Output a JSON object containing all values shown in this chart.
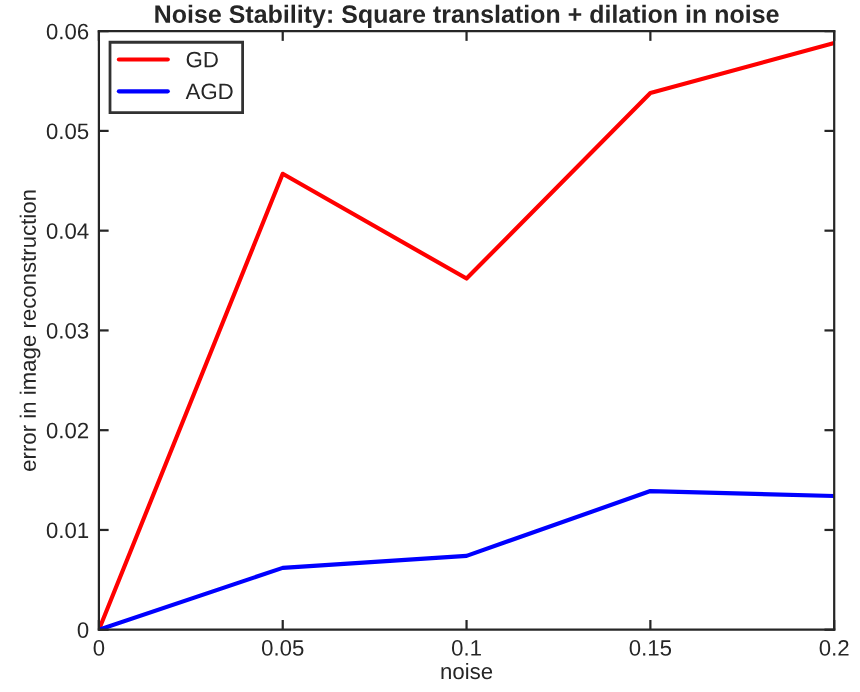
{
  "chart_data": {
    "type": "line",
    "title": "Noise Stability: Square translation + dilation in noise",
    "xlabel": "noise",
    "ylabel": "error in image reconstruction",
    "x": [
      0,
      0.05,
      0.1,
      0.15,
      0.2
    ],
    "series": [
      {
        "name": "GD",
        "color": "#ff0000",
        "values": [
          0,
          0.0457,
          0.0352,
          0.0538,
          0.0588
        ]
      },
      {
        "name": "AGD",
        "color": "#0000ff",
        "values": [
          0,
          0.0062,
          0.0074,
          0.0139,
          0.0134
        ]
      }
    ],
    "xlim": [
      0,
      0.2
    ],
    "xticks": [
      0,
      0.05,
      0.1,
      0.15,
      0.2
    ],
    "ylim": [
      0,
      0.06
    ],
    "yticks": [
      0,
      0.01,
      0.02,
      0.03,
      0.04,
      0.05,
      0.06
    ],
    "grid": false,
    "legend": "top left",
    "line_style": "solid",
    "marker": "none"
  }
}
